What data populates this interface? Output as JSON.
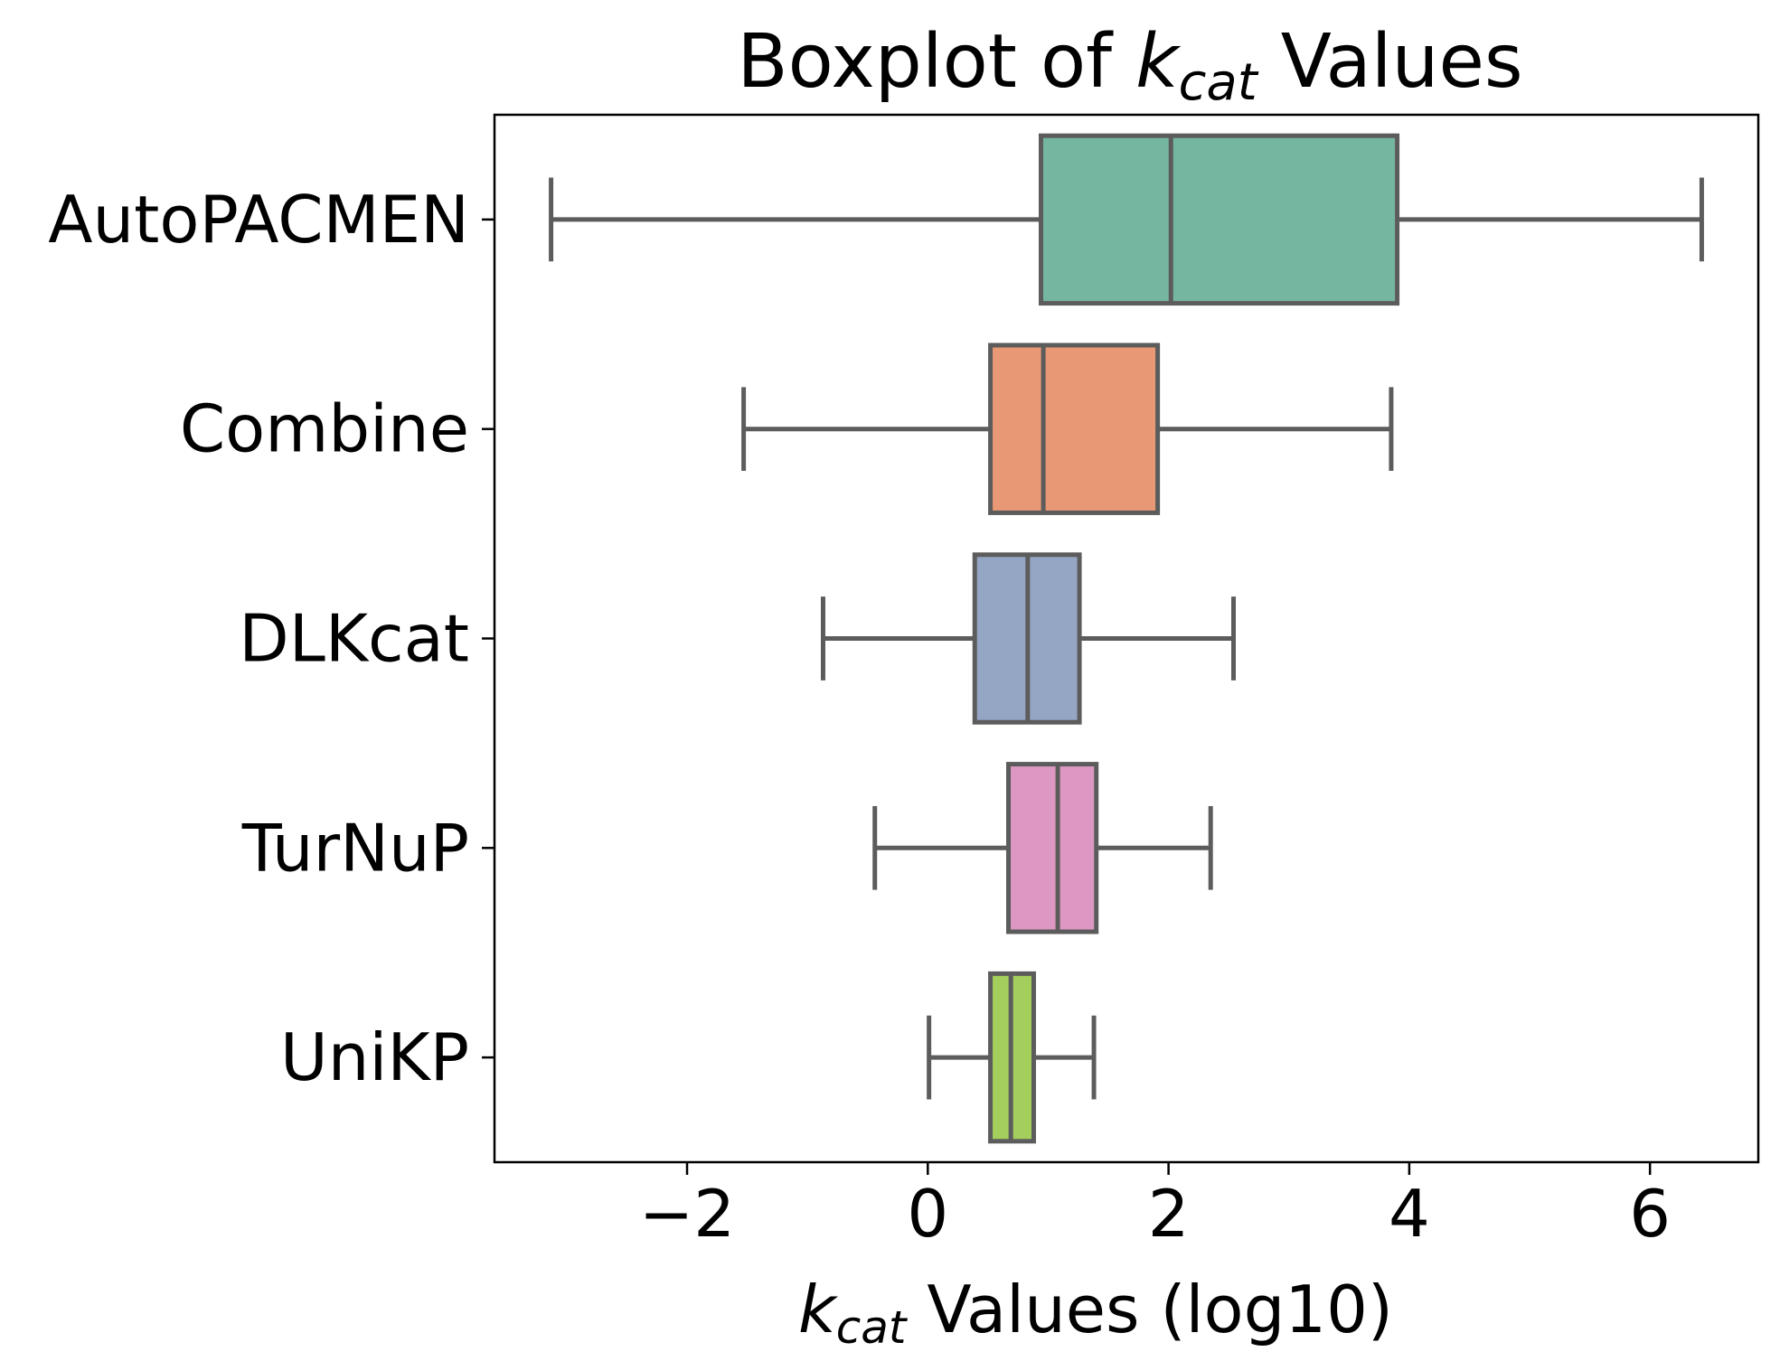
{
  "chart_data": {
    "type": "boxplot",
    "orientation": "horizontal",
    "title": {
      "main": "Boxplot of ",
      "var": "k",
      "sub": "cat",
      "suffix": " Values"
    },
    "xlabel": {
      "var": "k",
      "sub": "cat",
      "suffix": " Values (log10)"
    },
    "ylabel": "",
    "xlim": [
      -3.6,
      6.9
    ],
    "xticks": [
      {
        "value": -2,
        "label": "−2"
      },
      {
        "value": 0,
        "label": "0"
      },
      {
        "value": 2,
        "label": "2"
      },
      {
        "value": 4,
        "label": "4"
      },
      {
        "value": 6,
        "label": "6"
      }
    ],
    "grid": false,
    "legend": "none",
    "categories": [
      "AutoPACMEN",
      "Combine",
      "DLKcat",
      "TurNuP",
      "UniKP"
    ],
    "boxes": [
      {
        "name": "AutoPACMEN",
        "whisker_low": -3.13,
        "q1": 0.94,
        "median": 2.02,
        "q3": 3.9,
        "whisker_high": 6.43,
        "color": "#75b6a0"
      },
      {
        "name": "Combine",
        "whisker_low": -1.53,
        "q1": 0.52,
        "median": 0.96,
        "q3": 1.91,
        "whisker_high": 3.85,
        "color": "#e99875"
      },
      {
        "name": "DLKcat",
        "whisker_low": -0.87,
        "q1": 0.39,
        "median": 0.83,
        "q3": 1.26,
        "whisker_high": 2.54,
        "color": "#95a6c4"
      },
      {
        "name": "TurNuP",
        "whisker_low": -0.44,
        "q1": 0.67,
        "median": 1.08,
        "q3": 1.4,
        "whisker_high": 2.35,
        "color": "#dc98c2"
      },
      {
        "name": "UniKP",
        "whisker_low": 0.01,
        "q1": 0.52,
        "median": 0.69,
        "q3": 0.88,
        "whisker_high": 1.38,
        "color": "#a4cf5c"
      }
    ],
    "line_color": "#5c5c5c"
  }
}
